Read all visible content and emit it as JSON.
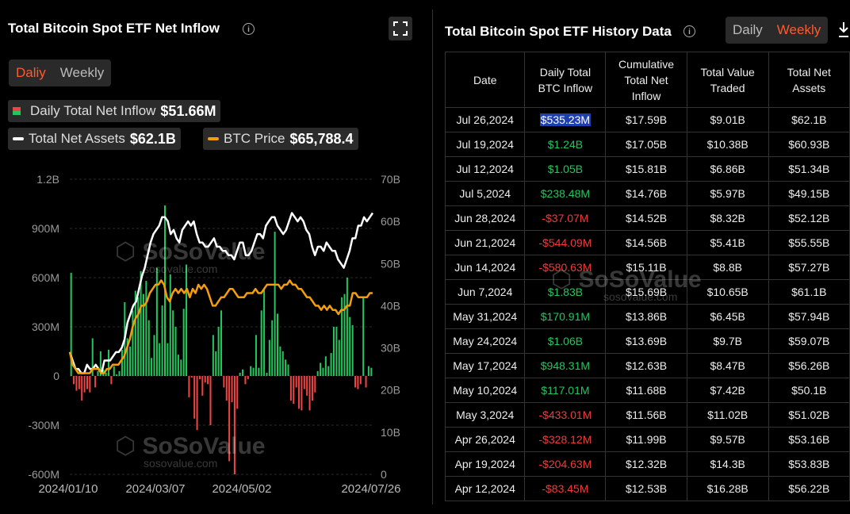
{
  "left_panel": {
    "title": "Total Bitcoin Spot ETF Net Inflow",
    "toggle": [
      "Daliy",
      "Weekly"
    ],
    "legend": [
      {
        "label": "Daily Total Net Inflow",
        "value": "$51.66M"
      },
      {
        "label": "Total Net Assets",
        "value": "$62.1B"
      },
      {
        "label": "BTC Price",
        "value": "$65,788.4"
      }
    ],
    "watermark": {
      "name": "SoSoValue",
      "url": "sosovalue.com"
    }
  },
  "right_panel": {
    "title": "Total Bitcoin Spot ETF History Data",
    "toggle": [
      "Daily",
      "Weekly"
    ],
    "columns": [
      "Date",
      "Daily Total BTC Inflow",
      "Cumulative Total Net Inflow",
      "Total Value Traded",
      "Total Net Assets"
    ],
    "rows": [
      [
        "Jul 26,2024",
        "$535.23M",
        "$17.59B",
        "$9.01B",
        "$62.1B"
      ],
      [
        "Jul 19,2024",
        "$1.24B",
        "$17.05B",
        "$10.38B",
        "$60.93B"
      ],
      [
        "Jul 12,2024",
        "$1.05B",
        "$15.81B",
        "$6.86B",
        "$51.34B"
      ],
      [
        "Jul 5,2024",
        "$238.48M",
        "$14.76B",
        "$5.97B",
        "$49.15B"
      ],
      [
        "Jun 28,2024",
        "-$37.07M",
        "$14.52B",
        "$8.32B",
        "$52.12B"
      ],
      [
        "Jun 21,2024",
        "-$544.09M",
        "$14.56B",
        "$5.41B",
        "$55.55B"
      ],
      [
        "Jun 14,2024",
        "-$580.63M",
        "$15.11B",
        "$8.8B",
        "$57.27B"
      ],
      [
        "Jun 7,2024",
        "$1.83B",
        "$15.69B",
        "$10.65B",
        "$61.1B"
      ],
      [
        "May 31,2024",
        "$170.91M",
        "$13.86B",
        "$6.45B",
        "$57.94B"
      ],
      [
        "May 24,2024",
        "$1.06B",
        "$13.69B",
        "$9.7B",
        "$59.07B"
      ],
      [
        "May 17,2024",
        "$948.31M",
        "$12.63B",
        "$8.47B",
        "$56.26B"
      ],
      [
        "May 10,2024",
        "$117.01M",
        "$11.68B",
        "$7.42B",
        "$50.1B"
      ],
      [
        "May 3,2024",
        "-$433.01M",
        "$11.56B",
        "$11.02B",
        "$51.02B"
      ],
      [
        "Apr 26,2024",
        "-$328.12M",
        "$11.99B",
        "$9.57B",
        "$53.16B"
      ],
      [
        "Apr 19,2024",
        "-$204.63M",
        "$12.32B",
        "$14.3B",
        "$53.83B"
      ],
      [
        "Apr 12,2024",
        "-$83.45M",
        "$12.53B",
        "$16.28B",
        "$56.22B"
      ]
    ]
  },
  "colors": {
    "inflow_pos": "#22c55e",
    "inflow_neg": "#ef4444",
    "assets_line": "#ffffff",
    "btc_line": "#f59e0b",
    "accent": "#ff5a2e"
  },
  "chart_data": {
    "type": "bar",
    "x_ticks": [
      "2024/01/10",
      "2024/03/07",
      "2024/05/02",
      "2024/07/26"
    ],
    "y_left_ticks": [
      "1.2B",
      "900M",
      "600M",
      "300M",
      "0",
      "-300M",
      "-600M"
    ],
    "y_right_ticks": [
      "70B",
      "60B",
      "50B",
      "40B",
      "30B",
      "20B",
      "10B",
      "0"
    ],
    "y_left_range": [
      -600,
      1200
    ],
    "y_right_range": [
      0,
      70
    ],
    "series": [
      {
        "name": "Daily Total Net Inflow",
        "type": "bar",
        "unit": "M",
        "values": [
          630,
          -50,
          -90,
          -80,
          -150,
          -100,
          -80,
          -100,
          230,
          -70,
          30,
          150,
          40,
          20,
          160,
          -50,
          60,
          10,
          30,
          160,
          450,
          230,
          180,
          400,
          520,
          480,
          640,
          500,
          580,
          340,
          110,
          250,
          660,
          200,
          430,
          1040,
          200,
          620,
          400,
          300,
          130,
          100,
          410,
          680,
          -130,
          -10,
          -260,
          -330,
          -20,
          -120,
          -40,
          -50,
          -300,
          250,
          150,
          300,
          400,
          -70,
          -150,
          -520,
          -160,
          -600,
          -200,
          20,
          40,
          -50,
          -20,
          60,
          50,
          250,
          50,
          400,
          530,
          20,
          220,
          340,
          880,
          380,
          180,
          150,
          100,
          70,
          -150,
          -170,
          -70,
          -200,
          -210,
          -80,
          -120,
          -210,
          -150,
          -100,
          30,
          80,
          50,
          120,
          60,
          140,
          300,
          300,
          220,
          480,
          500,
          600,
          360,
          310,
          -70,
          -80,
          -50,
          480,
          -70,
          60,
          50
        ]
      },
      {
        "name": "Total Net Assets",
        "type": "line",
        "unit": "B",
        "values": [
          29,
          27,
          25,
          25,
          24,
          24,
          26,
          25,
          25,
          26,
          25,
          24,
          27,
          27,
          27,
          28,
          29,
          29,
          30,
          32,
          36,
          38,
          40,
          41,
          44,
          47,
          49,
          52,
          55,
          57,
          58,
          59,
          61,
          61,
          60,
          57,
          58,
          56,
          55,
          58,
          59,
          60,
          59,
          60,
          57,
          55,
          55,
          54,
          54,
          55,
          56,
          54,
          54,
          53,
          53,
          52,
          52,
          51,
          53,
          55,
          55,
          52,
          52,
          53,
          55,
          57,
          57,
          56,
          59,
          60,
          61,
          61,
          59,
          58,
          57,
          58,
          60,
          62,
          61,
          60,
          61,
          60,
          58,
          57,
          54,
          52,
          54,
          54,
          53,
          55,
          54,
          53,
          53,
          51,
          50,
          49,
          51,
          53,
          56,
          56,
          59,
          59,
          61,
          60,
          61,
          62
        ]
      },
      {
        "name": "BTC Price",
        "type": "line",
        "unit": "B-axis",
        "values": [
          29,
          26,
          25,
          24,
          24,
          24,
          24,
          24,
          25,
          25,
          25,
          24,
          24,
          25,
          25,
          26,
          26,
          26,
          27,
          28,
          30,
          32,
          35,
          37,
          38,
          40,
          40,
          41,
          43,
          44,
          45,
          45,
          46,
          45,
          42,
          41,
          43,
          44,
          43,
          44,
          43,
          44,
          42,
          44,
          43,
          45,
          44,
          45,
          44,
          42,
          40,
          40,
          41,
          42,
          42,
          43,
          44,
          44,
          43,
          42,
          42,
          42,
          43,
          43,
          43,
          44,
          43,
          43,
          44,
          45,
          45,
          45,
          45,
          45,
          44,
          45,
          45,
          46,
          45,
          45,
          44,
          44,
          43,
          42,
          42,
          41,
          40,
          40,
          39,
          40,
          39,
          40,
          39,
          39,
          38,
          39,
          39,
          40,
          40,
          43,
          43,
          42,
          42,
          42,
          42,
          43,
          43
        ]
      }
    ]
  }
}
